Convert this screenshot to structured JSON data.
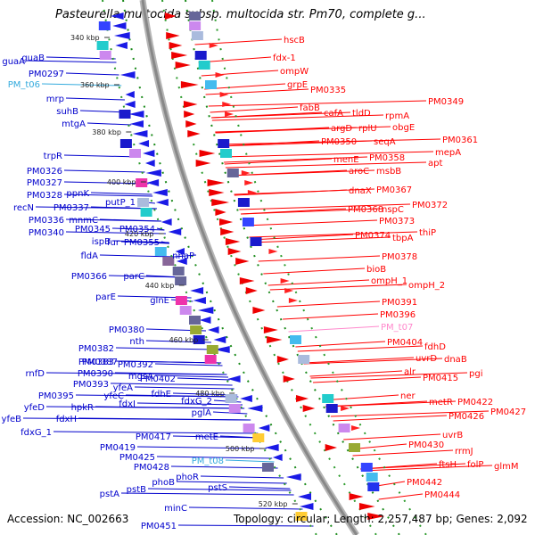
{
  "title": "Pasteurella multocida subsp. multocida str. Pm70, complete g...",
  "footer": {
    "accession": "Accession: NC_002663",
    "topology": "Topology: circular; Length: 2,257,487 bp; Genes: 2,092"
  },
  "colors": {
    "left_genes": "#0000cc",
    "right_genes": "#ff0000",
    "trna_left": "#33aadd",
    "trna_right": "#ff88cc",
    "backbone": "#888888"
  },
  "scale_ticks": [
    {
      "label": "340 kbp"
    },
    {
      "label": "360 kbp"
    },
    {
      "label": "380 kbp"
    },
    {
      "label": "400 kbp"
    },
    {
      "label": "420 kbp"
    },
    {
      "label": "440 kbp"
    },
    {
      "label": "460 kbp"
    },
    {
      "label": "480 kbp"
    },
    {
      "label": "500 kbp"
    },
    {
      "label": "520 kbp"
    }
  ],
  "left_labels": [
    {
      "text": "guaA"
    },
    {
      "text": "guaB"
    },
    {
      "text": "PM0297"
    },
    {
      "text": "PM_t06",
      "type": "trna"
    },
    {
      "text": "mrp"
    },
    {
      "text": "suhB"
    },
    {
      "text": "mtgA"
    },
    {
      "text": "trpR"
    },
    {
      "text": "PM0326"
    },
    {
      "text": "PM0327"
    },
    {
      "text": "PM0328"
    },
    {
      "text": "ppnK"
    },
    {
      "text": "recN"
    },
    {
      "text": "PM0337"
    },
    {
      "text": "PM0336"
    },
    {
      "text": "mnmC"
    },
    {
      "text": "putP_1"
    },
    {
      "text": "PM0340"
    },
    {
      "text": "PM0345"
    },
    {
      "text": "PM0354"
    },
    {
      "text": "ispB"
    },
    {
      "text": "fur"
    },
    {
      "text": "PM0355"
    },
    {
      "text": "fldA"
    },
    {
      "text": "nhaP"
    },
    {
      "text": "PM0366"
    },
    {
      "text": "parC"
    },
    {
      "text": "parE"
    },
    {
      "text": "glnE"
    },
    {
      "text": "PM0380"
    },
    {
      "text": "nth"
    },
    {
      "text": "PM0382"
    },
    {
      "text": "PM0383"
    },
    {
      "text": "PM0387"
    },
    {
      "text": "rnfD"
    },
    {
      "text": "PM0390"
    },
    {
      "text": "PM0392"
    },
    {
      "text": "mgsA"
    },
    {
      "text": "PM0393"
    },
    {
      "text": "PM0402"
    },
    {
      "text": "yfeA"
    },
    {
      "text": "PM0395"
    },
    {
      "text": "yfeC"
    },
    {
      "text": "fdhE"
    },
    {
      "text": "yfeD"
    },
    {
      "text": "hpkR"
    },
    {
      "text": "fdxI"
    },
    {
      "text": "fdxG_2"
    },
    {
      "text": "yfeB"
    },
    {
      "text": "fdxH"
    },
    {
      "text": "pglA"
    },
    {
      "text": "fdxG_1"
    },
    {
      "text": "PM0417"
    },
    {
      "text": "metE"
    },
    {
      "text": "PM0419"
    },
    {
      "text": "PM0425"
    },
    {
      "text": "PM_t08",
      "type": "trna"
    },
    {
      "text": "PM0428"
    },
    {
      "text": "phoB"
    },
    {
      "text": "phoR"
    },
    {
      "text": "pstS"
    },
    {
      "text": "pstA"
    },
    {
      "text": "pstB"
    },
    {
      "text": "minC"
    },
    {
      "text": "PM0451"
    }
  ],
  "right_labels": [
    {
      "text": "hscB"
    },
    {
      "text": "fdx-1"
    },
    {
      "text": "ompW"
    },
    {
      "text": "grpE"
    },
    {
      "text": "PM0335"
    },
    {
      "text": "fabB"
    },
    {
      "text": "cafA"
    },
    {
      "text": "tldD"
    },
    {
      "text": "rpmA"
    },
    {
      "text": "PM0349"
    },
    {
      "text": "argD"
    },
    {
      "text": "rplU"
    },
    {
      "text": "obgE"
    },
    {
      "text": "PM0350"
    },
    {
      "text": "seqA"
    },
    {
      "text": "PM0361"
    },
    {
      "text": "mepA"
    },
    {
      "text": "menE"
    },
    {
      "text": "PM0358"
    },
    {
      "text": "apt"
    },
    {
      "text": "aroC"
    },
    {
      "text": "msbB"
    },
    {
      "text": "dnaX"
    },
    {
      "text": "PM0367"
    },
    {
      "text": "PM0372"
    },
    {
      "text": "PM0368"
    },
    {
      "text": "nspC"
    },
    {
      "text": "PM0373"
    },
    {
      "text": "PM0374"
    },
    {
      "text": "thiP"
    },
    {
      "text": "tbpA"
    },
    {
      "text": "PM0378"
    },
    {
      "text": "bioB"
    },
    {
      "text": "ompH_1"
    },
    {
      "text": "ompH_2"
    },
    {
      "text": "PM0391"
    },
    {
      "text": "PM0396"
    },
    {
      "text": "PM_t07",
      "type": "trna"
    },
    {
      "text": "PM0404"
    },
    {
      "text": "fdhD"
    },
    {
      "text": "uvrD"
    },
    {
      "text": "dnaB"
    },
    {
      "text": "alr"
    },
    {
      "text": "PM0415"
    },
    {
      "text": "pgi"
    },
    {
      "text": "ner"
    },
    {
      "text": "metR"
    },
    {
      "text": "PM0422"
    },
    {
      "text": "PM0427"
    },
    {
      "text": "PM0426"
    },
    {
      "text": "uvrB"
    },
    {
      "text": "PM0430"
    },
    {
      "text": "rrmJ"
    },
    {
      "text": "ftsH"
    },
    {
      "text": "folP"
    },
    {
      "text": "glmM"
    },
    {
      "text": "PM0442"
    },
    {
      "text": "PM0444"
    }
  ]
}
